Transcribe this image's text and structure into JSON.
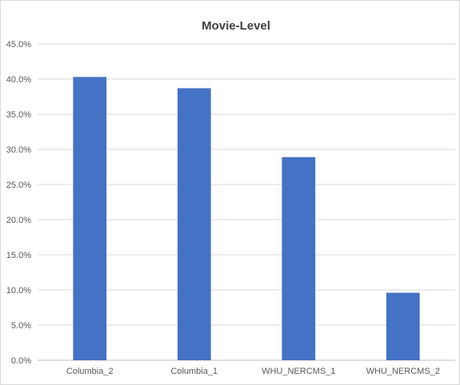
{
  "chart_data": {
    "type": "bar",
    "title": "Movie-Level",
    "xlabel": "",
    "ylabel": "",
    "categories": [
      "Columbia_2",
      "Columbia_1",
      "WHU_NERCMS_1",
      "WHU_NERCMS_2"
    ],
    "values": [
      40.3,
      38.7,
      28.9,
      9.6
    ],
    "ylim": [
      0,
      45
    ],
    "yticks": [
      "0.0%",
      "5.0%",
      "10.0%",
      "15.0%",
      "20.0%",
      "25.0%",
      "30.0%",
      "35.0%",
      "40.0%",
      "45.0%"
    ],
    "grid": true,
    "legend": "none",
    "bar_color": "#4472c4"
  }
}
